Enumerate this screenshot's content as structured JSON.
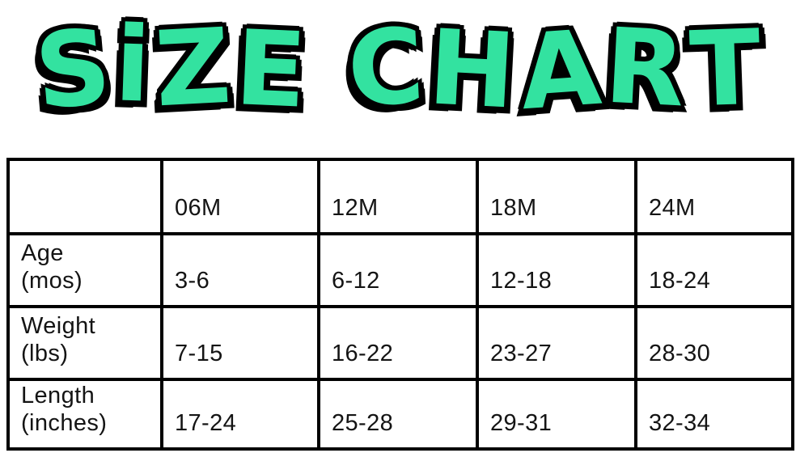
{
  "colors": {
    "title_green": "#33E2A0",
    "title_outline": "#000000",
    "table_border": "#000000",
    "text": "#141414"
  },
  "ui": {
    "title_text": "SiZE CHART",
    "row_labels": [
      "Age\n(mos)",
      "Weight\n(lbs)",
      "Length\n(inches)"
    ]
  },
  "chart_data": {
    "type": "table",
    "title": "SIZE CHART",
    "columns": [
      "06M",
      "12M",
      "18M",
      "24M"
    ],
    "row_headers": [
      "Age (mos)",
      "Weight (lbs)",
      "Length (inches)"
    ],
    "rows": [
      [
        "3-6",
        "6-12",
        "12-18",
        "18-24"
      ],
      [
        "7-15",
        "16-22",
        "23-27",
        "28-30"
      ],
      [
        "17-24",
        "25-28",
        "29-31",
        "32-34"
      ]
    ],
    "legend": "none",
    "grid": "solid black cell borders, blank top-left corner cell"
  }
}
